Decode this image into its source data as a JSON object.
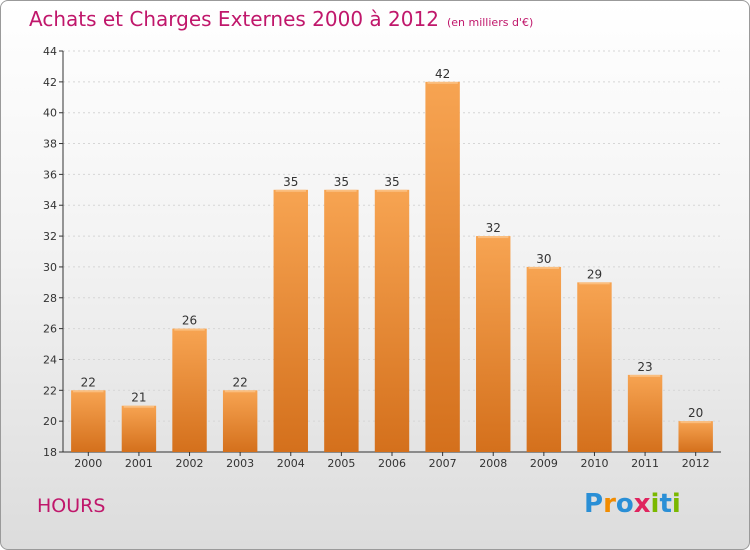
{
  "title": {
    "main": "Achats et Charges Externes 2000 à 2012",
    "unit": "(en milliers d'€)"
  },
  "city": "HOURS",
  "logo": {
    "text": "Proxiti",
    "letters": [
      {
        "ch": "P",
        "color": "#2a8fd6"
      },
      {
        "ch": "r",
        "color": "#f28c00"
      },
      {
        "ch": "o",
        "color": "#2a8fd6"
      },
      {
        "ch": "x",
        "color": "#e0245e"
      },
      {
        "ch": "i",
        "color": "#7ab800"
      },
      {
        "ch": "t",
        "color": "#2a8fd6"
      },
      {
        "ch": "i",
        "color": "#7ab800"
      }
    ]
  },
  "chart_data": {
    "type": "bar",
    "categories": [
      "2000",
      "2001",
      "2002",
      "2003",
      "2004",
      "2005",
      "2006",
      "2007",
      "2008",
      "2009",
      "2010",
      "2011",
      "2012"
    ],
    "values": [
      22,
      21,
      26,
      22,
      35,
      35,
      35,
      42,
      32,
      30,
      29,
      23,
      20
    ],
    "ylim": [
      18,
      44
    ],
    "yticks": [
      18,
      20,
      22,
      24,
      26,
      28,
      30,
      32,
      34,
      36,
      38,
      40,
      42,
      44
    ],
    "grid": true,
    "bar_color_top": "#f7a452",
    "bar_color_bottom": "#d4701c",
    "axis_color": "#333333"
  }
}
